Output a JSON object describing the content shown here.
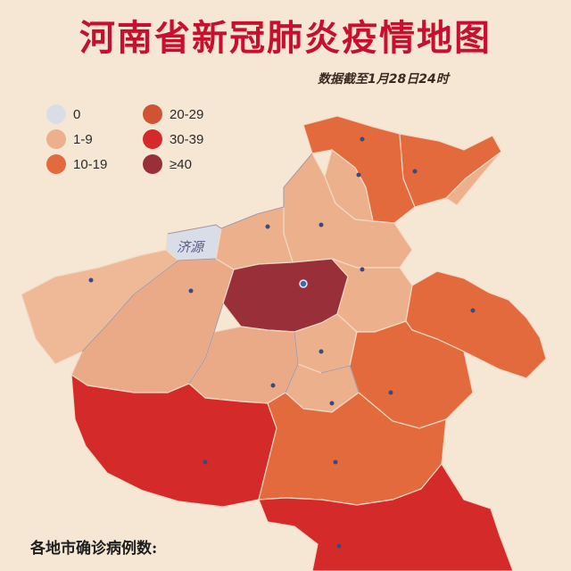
{
  "title": "河南省新冠肺炎疫情地图",
  "date_note": "数据截至1月28日24时",
  "legend": [
    {
      "label": "0",
      "color": "#d9dde8"
    },
    {
      "label": "1-9",
      "color": "#ecb08d"
    },
    {
      "label": "10-19",
      "color": "#e36a3d"
    },
    {
      "label": "20-29",
      "color": "#cf5433"
    },
    {
      "label": "30-39",
      "color": "#d42a2a"
    },
    {
      "label": "≥40",
      "color": "#993039"
    }
  ],
  "map": {
    "jiyuan_label": "济源",
    "regions": [
      {
        "id": "region-anyang",
        "color": "#e36a3d"
      },
      {
        "id": "region-hebi",
        "color": "#ecb08d"
      },
      {
        "id": "region-puyang",
        "color": "#e36a3d"
      },
      {
        "id": "region-puyang-east",
        "color": "#ecb08d"
      },
      {
        "id": "region-xinxiang",
        "color": "#ecb08d"
      },
      {
        "id": "region-jiaozuo",
        "color": "#ecb08d"
      },
      {
        "id": "region-jiyuan",
        "color": "#d9dde8"
      },
      {
        "id": "region-sanmenxia",
        "color": "#efb896"
      },
      {
        "id": "region-luoyang",
        "color": "#ebaa87"
      },
      {
        "id": "region-zhengzhou",
        "color": "#993039"
      },
      {
        "id": "region-kaifeng",
        "color": "#ecb08d"
      },
      {
        "id": "region-shangqiu",
        "color": "#e36a3d"
      },
      {
        "id": "region-xuchang",
        "color": "#ecb08d"
      },
      {
        "id": "region-pingdingshan",
        "color": "#ebaa87"
      },
      {
        "id": "region-luohe",
        "color": "#ecb08d"
      },
      {
        "id": "region-zhoukou",
        "color": "#e36a3d"
      },
      {
        "id": "region-nanyang",
        "color": "#d42a2a"
      },
      {
        "id": "region-zhumadian",
        "color": "#e36a3d"
      },
      {
        "id": "region-xinyang",
        "color": "#d42a2a"
      }
    ]
  },
  "footer": "各地市确诊病例数:"
}
